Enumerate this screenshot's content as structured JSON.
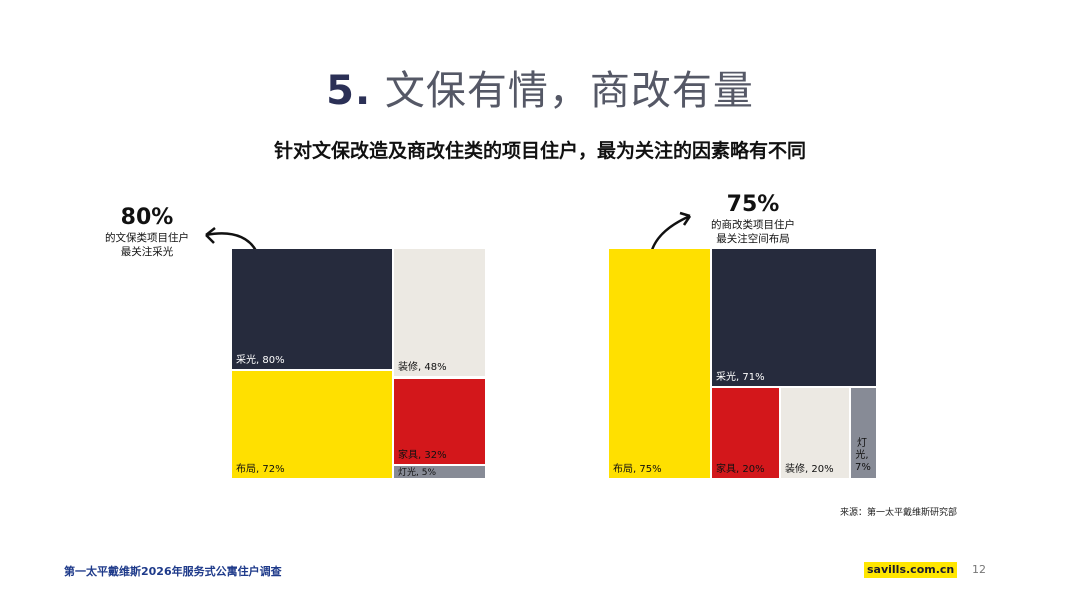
{
  "title": {
    "number": "5.",
    "text": "文保有情，商改有量"
  },
  "subtitle": "针对文保改造及商改住类的项目住户，最为关注的因素略有不同",
  "source": "来源：第一太平戴维斯研究部",
  "footer": {
    "left": "第一太平戴维斯2026年服务式公寓住户调查",
    "brand": "savills.com.cn",
    "page": "12"
  },
  "colors": {
    "navy": "#262b3d",
    "yellow": "#ffe000",
    "red": "#d3171b",
    "light": "#ece9e3",
    "gray": "#878b96"
  },
  "chart_data": [
    {
      "type": "treemap",
      "callout": {
        "value": "80%",
        "line1": "的文保类项目住户",
        "line2": "最关注采光"
      },
      "tiles": [
        {
          "name": "采光",
          "value": 80,
          "label": "采光, 80%",
          "color": "navy"
        },
        {
          "name": "布局",
          "value": 72,
          "label": "布局, 72%",
          "color": "yellow"
        },
        {
          "name": "装修",
          "value": 48,
          "label": "装修, 48%",
          "color": "light"
        },
        {
          "name": "家具",
          "value": 32,
          "label": "家具, 32%",
          "color": "red"
        },
        {
          "name": "灯光",
          "value": 5,
          "label": "灯光, 5%",
          "color": "gray"
        }
      ]
    },
    {
      "type": "treemap",
      "callout": {
        "value": "75%",
        "line1": "的商改类项目住户",
        "line2": "最关注空间布局"
      },
      "tiles": [
        {
          "name": "布局",
          "value": 75,
          "label": "布局, 75%",
          "color": "yellow"
        },
        {
          "name": "采光",
          "value": 71,
          "label": "采光, 71%",
          "color": "navy"
        },
        {
          "name": "家具",
          "value": 20,
          "label": "家具, 20%",
          "color": "red"
        },
        {
          "name": "装修",
          "value": 20,
          "label": "装修, 20%",
          "color": "light"
        },
        {
          "name": "灯光",
          "value": 7,
          "label": "灯光, 7%",
          "color": "gray"
        }
      ]
    }
  ]
}
